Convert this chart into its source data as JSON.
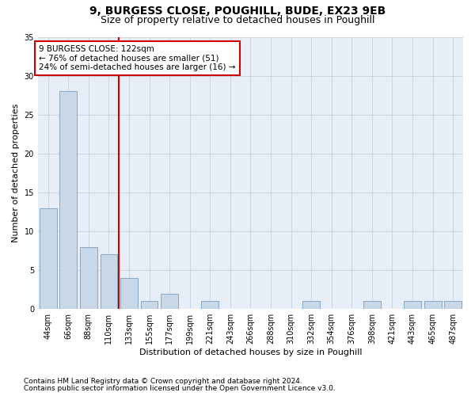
{
  "title1": "9, BURGESS CLOSE, POUGHILL, BUDE, EX23 9EB",
  "title2": "Size of property relative to detached houses in Poughill",
  "xlabel": "Distribution of detached houses by size in Poughill",
  "ylabel": "Number of detached properties",
  "categories": [
    "44sqm",
    "66sqm",
    "88sqm",
    "110sqm",
    "133sqm",
    "155sqm",
    "177sqm",
    "199sqm",
    "221sqm",
    "243sqm",
    "266sqm",
    "288sqm",
    "310sqm",
    "332sqm",
    "354sqm",
    "376sqm",
    "398sqm",
    "421sqm",
    "443sqm",
    "465sqm",
    "487sqm"
  ],
  "values": [
    13,
    28,
    8,
    7,
    4,
    1,
    2,
    0,
    1,
    0,
    0,
    0,
    0,
    1,
    0,
    0,
    1,
    0,
    1,
    1,
    1
  ],
  "bar_color": "#c8d8e8",
  "bar_edge_color": "#7aa0be",
  "ref_line_color": "#cc0000",
  "annotation_box_edge": "#cc0000",
  "annotation_bg": "#ffffff",
  "ref_line_label": "9 BURGESS CLOSE: 122sqm",
  "annotation_line1": "← 76% of detached houses are smaller (51)",
  "annotation_line2": "24% of semi-detached houses are larger (16) →",
  "ylim": [
    0,
    35
  ],
  "yticks": [
    0,
    5,
    10,
    15,
    20,
    25,
    30,
    35
  ],
  "grid_color": "#c8d0dc",
  "bg_color": "#e8eef8",
  "footnote1": "Contains HM Land Registry data © Crown copyright and database right 2024.",
  "footnote2": "Contains public sector information licensed under the Open Government Licence v3.0.",
  "title1_fontsize": 10,
  "title2_fontsize": 9,
  "xlabel_fontsize": 8,
  "ylabel_fontsize": 8,
  "tick_fontsize": 7,
  "annotation_fontsize": 7.5,
  "footnote_fontsize": 6.5
}
